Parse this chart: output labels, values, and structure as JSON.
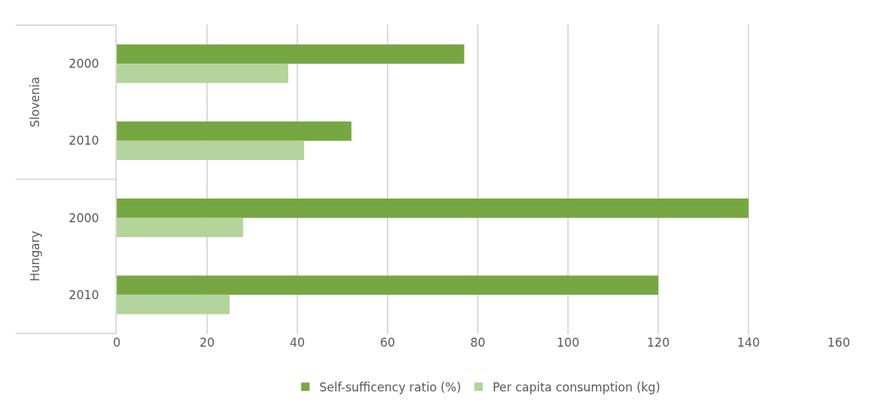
{
  "chart_data": {
    "type": "bar",
    "orientation": "horizontal",
    "categories": [
      "2000",
      "2010",
      "2000",
      "2010"
    ],
    "series": [
      {
        "name": "Self-sufficency ratio (%)",
        "color": "#77a743",
        "values": [
          77,
          52,
          140,
          120
        ]
      },
      {
        "name": "Per capita consumption (kg)",
        "color": "#b3d49a",
        "values": [
          38,
          41.5,
          28,
          25
        ]
      }
    ],
    "annotations": [
      "Slovenia",
      "Hungary"
    ],
    "xlim": [
      0,
      160
    ],
    "xticks": [
      0,
      20,
      40,
      60,
      80,
      100,
      120,
      140,
      160
    ],
    "grid": "x",
    "legend": "bottom"
  }
}
